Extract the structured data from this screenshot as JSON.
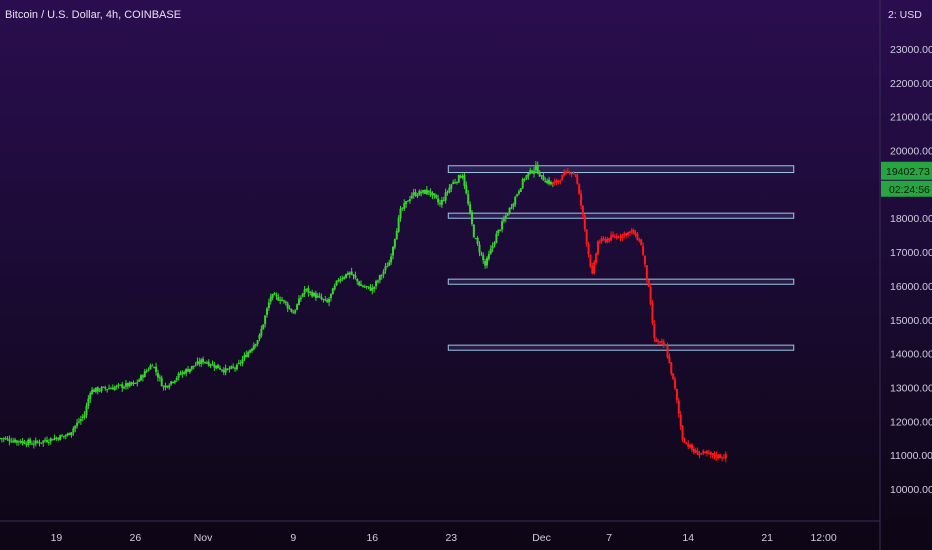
{
  "header": {
    "title": "Bitcoin / U.S. Dollar, 4h, COINBASE"
  },
  "price_scale": {
    "unit": "USD",
    "currency_marker": "2:"
  },
  "last_price": {
    "value": "19402.73",
    "countdown": "02:24:56",
    "color": "#26a541"
  },
  "colors": {
    "up": "#39d52f",
    "down": "#ff1a1a",
    "zone_stroke": "#9fc6e6"
  },
  "chart_data": {
    "type": "candlestick",
    "title": "Bitcoin / U.S. Dollar, 4h, COINBASE",
    "ylim": [
      9500,
      24000
    ],
    "y_ticks": [
      10000,
      11000,
      12000,
      13000,
      14000,
      15000,
      16000,
      17000,
      18000,
      19000,
      20000,
      21000,
      22000,
      23000
    ],
    "y_tick_labels": [
      "10000.00",
      "11000.00",
      "12000.00",
      "13000.00",
      "14000.00",
      "15000.00",
      "16000.00",
      "17000.00",
      "18000.00",
      "19000.00",
      "20000.00",
      "21000.00",
      "22000.00",
      "23000.00"
    ],
    "x_ticks": [
      {
        "label": "19",
        "day": 19
      },
      {
        "label": "26",
        "day": 26
      },
      {
        "label": "Nov",
        "day": 32
      },
      {
        "label": "9",
        "day": 40
      },
      {
        "label": "16",
        "day": 47
      },
      {
        "label": "23",
        "day": 54
      },
      {
        "label": "Dec",
        "day": 62
      },
      {
        "label": "7",
        "day": 68
      },
      {
        "label": "14",
        "day": 75
      },
      {
        "label": "21",
        "day": 82
      },
      {
        "label": "12:00",
        "day": 87
      }
    ],
    "x_day_range": [
      14,
      92
    ],
    "anchors_up": [
      [
        14,
        11500
      ],
      [
        17,
        11350
      ],
      [
        20,
        11600
      ],
      [
        21.5,
        12200
      ],
      [
        22,
        12900
      ],
      [
        24,
        13000
      ],
      [
        26,
        13100
      ],
      [
        27.5,
        13700
      ],
      [
        28.5,
        13000
      ],
      [
        30,
        13400
      ],
      [
        32,
        13800
      ],
      [
        34,
        13500
      ],
      [
        35,
        13600
      ],
      [
        37,
        14500
      ],
      [
        38,
        15700
      ],
      [
        39,
        15600
      ],
      [
        40,
        15200
      ],
      [
        41,
        15900
      ],
      [
        43,
        15500
      ],
      [
        44,
        16200
      ],
      [
        45,
        16400
      ],
      [
        46,
        16000
      ],
      [
        47,
        15900
      ],
      [
        48.5,
        16700
      ],
      [
        49.5,
        18200
      ],
      [
        50.5,
        18700
      ],
      [
        52,
        18800
      ],
      [
        53,
        18400
      ],
      [
        54,
        19000
      ],
      [
        55,
        19300
      ],
      [
        56,
        17500
      ],
      [
        57,
        16600
      ],
      [
        58,
        17500
      ],
      [
        59.5,
        18500
      ],
      [
        60.5,
        19200
      ],
      [
        61.5,
        19500
      ],
      [
        62,
        19200
      ],
      [
        63,
        19000
      ]
    ],
    "anchors_down": [
      [
        63,
        19000
      ],
      [
        64.5,
        19400
      ],
      [
        65,
        19300
      ],
      [
        65.6,
        18200
      ],
      [
        66,
        17300
      ],
      [
        66.5,
        16300
      ],
      [
        67,
        17300
      ],
      [
        68,
        17400
      ],
      [
        69,
        17500
      ],
      [
        70,
        17600
      ],
      [
        70.8,
        17300
      ],
      [
        71.5,
        15900
      ],
      [
        72,
        14400
      ],
      [
        73,
        14200
      ],
      [
        73.8,
        13000
      ],
      [
        74.5,
        11500
      ],
      [
        75.5,
        11100
      ],
      [
        77,
        11000
      ],
      [
        78.5,
        10950
      ]
    ],
    "support_resistance_zones": [
      {
        "y_top": 19550,
        "y_bottom": 19350,
        "x_start_day": 54,
        "x_end_day": 84
      },
      {
        "y_top": 18150,
        "y_bottom": 18000,
        "x_start_day": 54,
        "x_end_day": 84
      },
      {
        "y_top": 16200,
        "y_bottom": 16050,
        "x_start_day": 54,
        "x_end_day": 84
      },
      {
        "y_top": 14250,
        "y_bottom": 14100,
        "x_start_day": 54,
        "x_end_day": 84
      }
    ]
  }
}
